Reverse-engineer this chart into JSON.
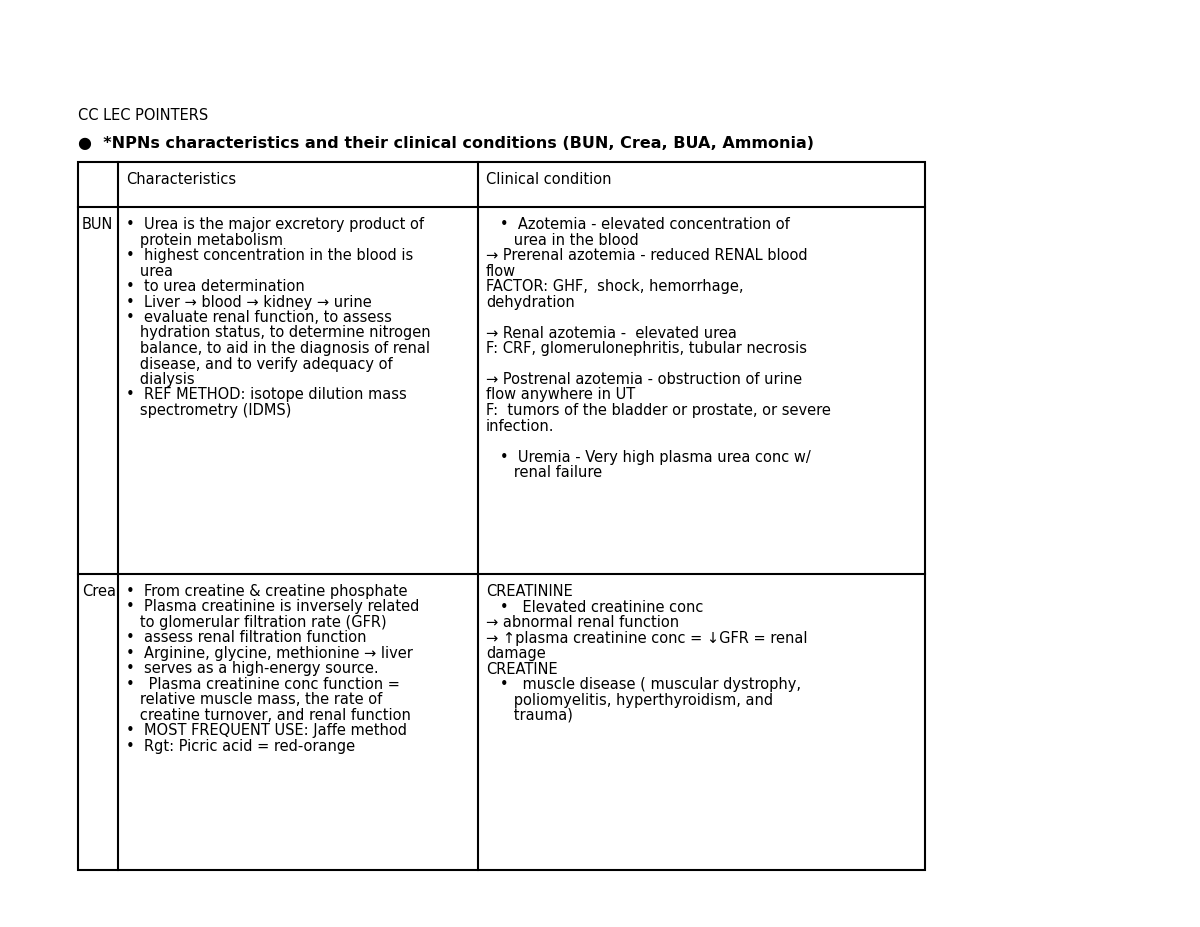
{
  "title_line1": "CC LEC POINTERS",
  "title_line2": "●  *NPNs characteristics and their clinical conditions (BUN, Crea, BUA, Ammonia)",
  "bg_color": "#ffffff",
  "text_color": "#000000",
  "bun_char_lines": [
    "•  Urea is the major excretory product of",
    "   protein metabolism",
    "•  highest concentration in the blood is",
    "   urea",
    "•  to urea determination",
    "•  Liver → blood → kidney → urine",
    "•  evaluate renal function, to assess",
    "   hydration status, to determine nitrogen",
    "   balance, to aid in the diagnosis of renal",
    "   disease, and to verify adequacy of",
    "   dialysis",
    "•  REF METHOD: isotope dilution mass",
    "   spectrometry (IDMS)"
  ],
  "bun_clin_lines": [
    "   •  Azotemia - elevated concentration of",
    "      urea in the blood",
    "→ Prerenal azotemia - reduced RENAL blood",
    "flow",
    "FACTOR: GHF,  shock, hemorrhage,",
    "dehydration",
    "",
    "→ Renal azotemia -  elevated urea",
    "F: CRF, glomerulonephritis, tubular necrosis",
    "",
    "→ Postrenal azotemia - obstruction of urine",
    "flow anywhere in UT",
    "F:  tumors of the bladder or prostate, or severe",
    "infection.",
    "",
    "   •  Uremia - Very high plasma urea conc w/",
    "      renal failure"
  ],
  "crea_char_lines": [
    "•  From creatine & creatine phosphate",
    "•  Plasma creatinine is inversely related",
    "   to glomerular filtration rate (GFR)",
    "•  assess renal filtration function",
    "•  Arginine, glycine, methionine → liver",
    "•  serves as a high-energy source.",
    "•   Plasma creatinine conc function =",
    "   relative muscle mass, the rate of",
    "   creatine turnover, and renal function",
    "•  MOST FREQUENT USE: Jaffe method",
    "•  Rgt: Picric acid = red-orange"
  ],
  "crea_clin_lines": [
    "CREATININE",
    "   •   Elevated creatinine conc",
    "→ abnormal renal function",
    "→ ↑plasma creatinine conc = ↓GFR = renal",
    "damage",
    "CREATINE",
    "   •   muscle disease ( muscular dystrophy,",
    "      poliomyelitis, hyperthyroidism, and",
    "      trauma)"
  ]
}
